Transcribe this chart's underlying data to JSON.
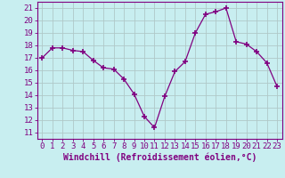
{
  "x": [
    0,
    1,
    2,
    3,
    4,
    5,
    6,
    7,
    8,
    9,
    10,
    11,
    12,
    13,
    14,
    15,
    16,
    17,
    18,
    19,
    20,
    21,
    22,
    23
  ],
  "y": [
    17.0,
    17.8,
    17.8,
    17.6,
    17.5,
    16.8,
    16.2,
    16.1,
    15.3,
    14.1,
    12.3,
    11.4,
    13.9,
    15.9,
    16.7,
    19.0,
    20.5,
    20.7,
    21.0,
    18.3,
    18.1,
    17.5,
    16.6,
    14.7
  ],
  "line_color": "#800080",
  "marker": "+",
  "marker_size": 4,
  "bg_color": "#c8eef0",
  "grid_color": "#b0c8c8",
  "xlabel": "Windchill (Refroidissement éolien,°C)",
  "xlim": [
    -0.5,
    23.5
  ],
  "ylim": [
    10.5,
    21.5
  ],
  "yticks": [
    11,
    12,
    13,
    14,
    15,
    16,
    17,
    18,
    19,
    20,
    21
  ],
  "xticks": [
    0,
    1,
    2,
    3,
    4,
    5,
    6,
    7,
    8,
    9,
    10,
    11,
    12,
    13,
    14,
    15,
    16,
    17,
    18,
    19,
    20,
    21,
    22,
    23
  ],
  "tick_color": "#800080",
  "label_color": "#800080",
  "tick_fontsize": 6.5,
  "xlabel_fontsize": 7.0
}
